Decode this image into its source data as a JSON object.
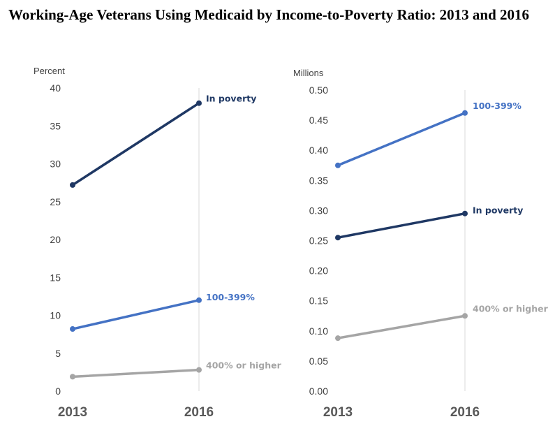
{
  "title": "Working-Age Veterans Using Medicaid by Income-to-Poverty Ratio: 2013 and 2016",
  "chart_data": [
    {
      "type": "line",
      "ylabel": "Percent",
      "categories": [
        "2013",
        "2016"
      ],
      "ylim": [
        0,
        40
      ],
      "yticks": [
        "0",
        "5",
        "10",
        "15",
        "20",
        "25",
        "30",
        "35",
        "40"
      ],
      "grid": false,
      "series": [
        {
          "name": "In poverty",
          "values": [
            27.2,
            38.0
          ],
          "color": "#1f3864"
        },
        {
          "name": "100-399%",
          "values": [
            8.2,
            12.0
          ],
          "color": "#4472c4"
        },
        {
          "name": "400% or higher",
          "values": [
            1.9,
            2.8
          ],
          "color": "#a5a5a5"
        }
      ]
    },
    {
      "type": "line",
      "ylabel": "Millions",
      "categories": [
        "2013",
        "2016"
      ],
      "ylim": [
        0,
        0.5
      ],
      "yticks": [
        "0.00",
        "0.05",
        "0.10",
        "0.15",
        "0.20",
        "0.25",
        "0.30",
        "0.35",
        "0.40",
        "0.45",
        "0.50"
      ],
      "grid": false,
      "series": [
        {
          "name": "100-399%",
          "values": [
            0.375,
            0.462
          ],
          "color": "#4472c4"
        },
        {
          "name": "In poverty",
          "values": [
            0.255,
            0.295
          ],
          "color": "#1f3864"
        },
        {
          "name": "400% or higher",
          "values": [
            0.088,
            0.125
          ],
          "color": "#a5a5a5"
        }
      ]
    }
  ]
}
